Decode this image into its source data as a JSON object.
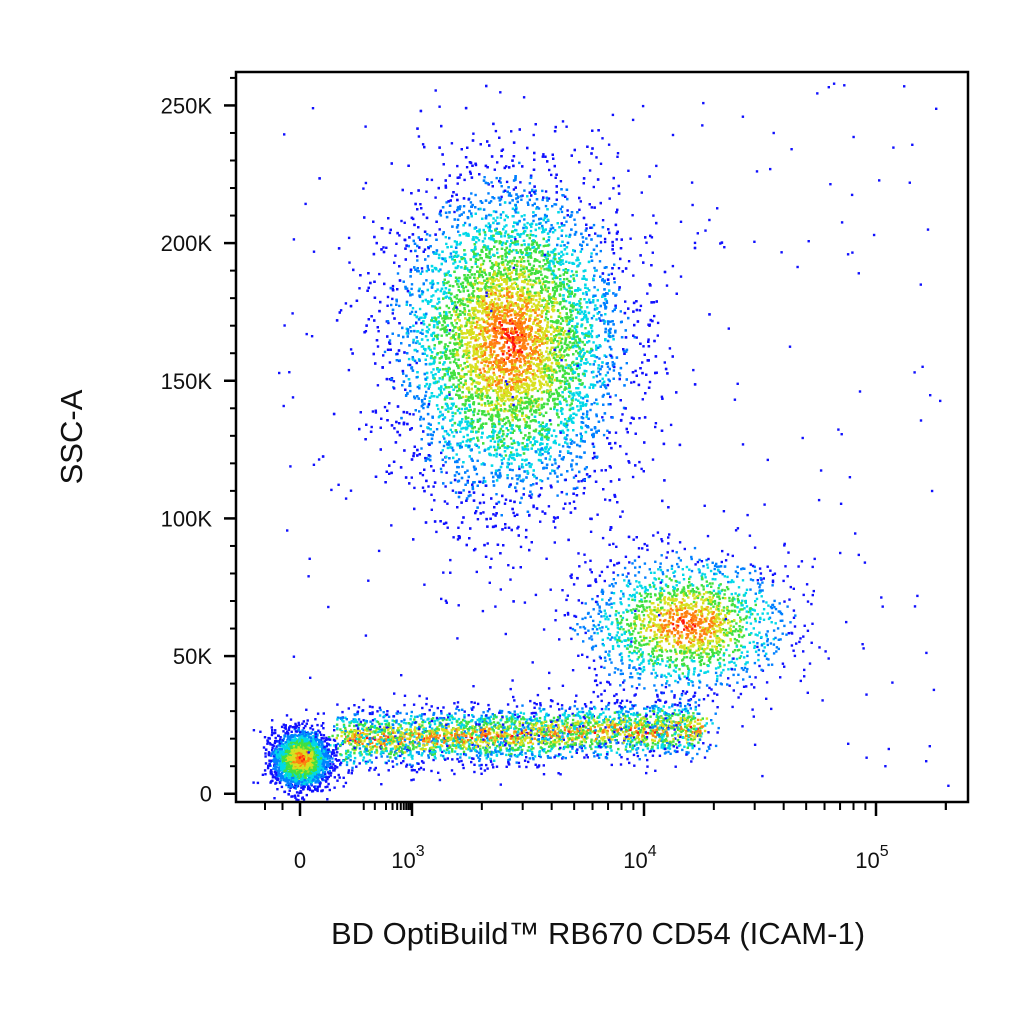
{
  "chart_data": {
    "type": "scatter",
    "title": "",
    "xlabel": "BD OptiBuild™ RB670 CD54 (ICAM-1)",
    "ylabel": "SSC-A",
    "x_scale": "biexponential",
    "xlim": [
      -150,
      250000
    ],
    "ylim": [
      -3000,
      262143
    ],
    "x_ticks": [
      {
        "value": 0,
        "label": "0",
        "exp": ""
      },
      {
        "value": 1000,
        "label": "10",
        "exp": "3"
      },
      {
        "value": 10000,
        "label": "10",
        "exp": "4"
      },
      {
        "value": 100000,
        "label": "10",
        "exp": "5"
      }
    ],
    "y_ticks": [
      {
        "value": 0,
        "label": "0"
      },
      {
        "value": 50000,
        "label": "50K"
      },
      {
        "value": 100000,
        "label": "100K"
      },
      {
        "value": 150000,
        "label": "150K"
      },
      {
        "value": 200000,
        "label": "200K"
      },
      {
        "value": 250000,
        "label": "250K"
      }
    ],
    "density_colors": [
      "#1010ff",
      "#0080ff",
      "#00d8e8",
      "#40e040",
      "#d8e020",
      "#ff8010",
      "#ff1010"
    ],
    "populations": [
      {
        "name": "",
        "x_center": 2600,
        "y_center": 165000,
        "x_spread": 0.22,
        "y_spread": 28000,
        "points": 9000
      },
      {
        "name": "",
        "x_center": 15000,
        "y_center": 62000,
        "x_spread": 0.2,
        "y_spread": 12000,
        "points": 1800
      },
      {
        "name": "",
        "x_center": 2500,
        "y_center": 20000,
        "x_spread": 0.35,
        "y_spread": 5000,
        "points": 3000
      },
      {
        "name": "",
        "x_center": 0,
        "y_center": 13000,
        "x_spread": 0.05,
        "y_spread": 5000,
        "points": 2400
      }
    ],
    "grid": false,
    "legend": "none"
  }
}
